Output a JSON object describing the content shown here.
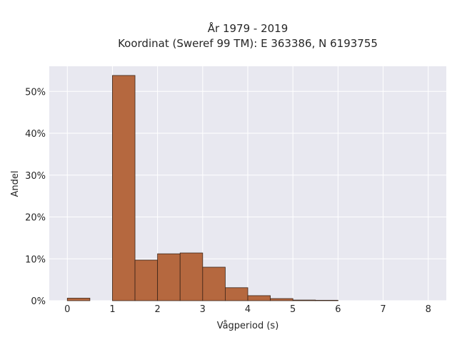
{
  "chart_data": {
    "type": "bar",
    "title_line1": "År 1979 - 2019",
    "title_line2": "Koordinat (Sweref 99 TM): E 363386, N 6193755",
    "xlabel": "Vågperiod (s)",
    "ylabel": "Andel",
    "xlim": [
      -0.4,
      8.4
    ],
    "ylim": [
      0,
      56
    ],
    "x_ticks": [
      0,
      1,
      2,
      3,
      4,
      5,
      6,
      7,
      8
    ],
    "y_ticks": [
      0,
      10,
      20,
      30,
      40,
      50
    ],
    "y_tick_labels": [
      "0%",
      "10%",
      "20%",
      "30%",
      "40%",
      "50%"
    ],
    "grid": true,
    "bar_color": "#b5683f",
    "bar_edge_color": "#3b2418",
    "background": "#e8e8f0",
    "bins": [
      {
        "x0": 0.0,
        "x1": 0.5,
        "value": 0.6
      },
      {
        "x0": 0.5,
        "x1": 1.0,
        "value": 0.0
      },
      {
        "x0": 1.0,
        "x1": 1.5,
        "value": 53.8
      },
      {
        "x0": 1.5,
        "x1": 2.0,
        "value": 9.7
      },
      {
        "x0": 2.0,
        "x1": 2.5,
        "value": 11.2
      },
      {
        "x0": 2.5,
        "x1": 3.0,
        "value": 11.4
      },
      {
        "x0": 3.0,
        "x1": 3.5,
        "value": 8.0
      },
      {
        "x0": 3.5,
        "x1": 4.0,
        "value": 3.1
      },
      {
        "x0": 4.0,
        "x1": 4.5,
        "value": 1.2
      },
      {
        "x0": 4.5,
        "x1": 5.0,
        "value": 0.5
      },
      {
        "x0": 5.0,
        "x1": 5.5,
        "value": 0.15
      },
      {
        "x0": 5.5,
        "x1": 6.0,
        "value": 0.1
      }
    ]
  }
}
